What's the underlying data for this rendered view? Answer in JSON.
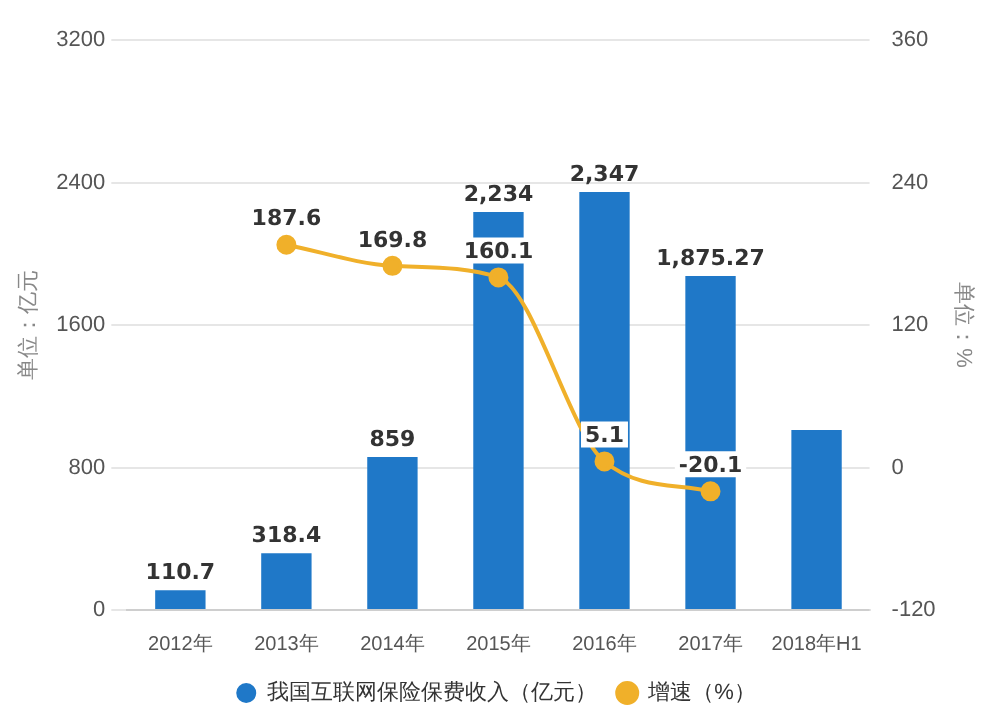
{
  "chart_data": {
    "type": "bar",
    "categories": [
      "2012年",
      "2013年",
      "2014年",
      "2015年",
      "2016年",
      "2017年",
      "2018年H1"
    ],
    "ylabel": "单位：亿元",
    "y2label": "单位：%",
    "series": [
      {
        "name": "我国互联网保险保费收入（亿元）",
        "color": "#1f78c8",
        "values": [
          110.7,
          318.4,
          859,
          2234,
          2347,
          1875.27,
          1010
        ],
        "value_labels": [
          "110.7",
          "318.4",
          "859",
          "2,234",
          "2,347",
          "1,875.27",
          null
        ]
      },
      {
        "name": "增速（%）",
        "type": "line",
        "axis": "y2",
        "color": "#f0b02a",
        "marker": "circle",
        "values": [
          null,
          187.6,
          169.8,
          160.1,
          5.1,
          -20.1,
          null
        ],
        "value_labels": [
          null,
          "187.6",
          "169.8",
          "160.1",
          "5.1",
          "-20.1",
          null
        ]
      }
    ],
    "ylim": [
      0,
      3200
    ],
    "yticks": [
      0,
      800,
      1600,
      2400,
      3200
    ],
    "y2lim": [
      -120,
      360
    ],
    "y2ticks": [
      -120,
      0,
      120,
      240,
      360
    ],
    "grid": "y",
    "legend": "bottom"
  }
}
